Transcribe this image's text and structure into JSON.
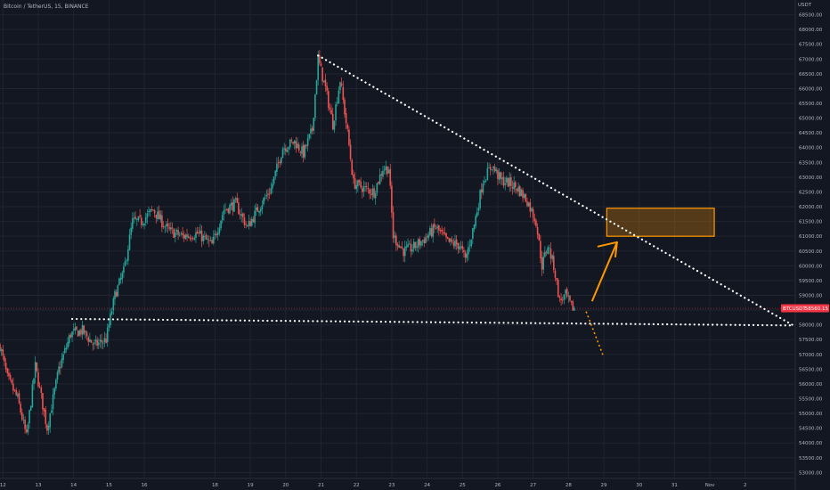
{
  "chart_data": {
    "type": "candlestick",
    "title": "Bitcoin / TetherUS, 15, BINANCE",
    "unit": "USDT",
    "y_range": [
      52800,
      69000
    ],
    "y_ticks": [
      53000,
      53500,
      54000,
      54500,
      55000,
      55500,
      56000,
      56500,
      57000,
      57500,
      58000,
      58500,
      59000,
      59500,
      60000,
      60500,
      61000,
      61500,
      62000,
      62500,
      63000,
      63500,
      64000,
      64500,
      65000,
      65500,
      66000,
      66500,
      67000,
      67500,
      68000,
      68500
    ],
    "y_tick_labels": [
      "53000.00",
      "53500.00",
      "54000.00",
      "54500.00",
      "55000.00",
      "55500.00",
      "56000.00",
      "56500.00",
      "57000.00",
      "57500.00",
      "58000.00",
      "58500.00",
      "59000.00",
      "59500.00",
      "60000.00",
      "60500.00",
      "61000.00",
      "61500.00",
      "62000.00",
      "62500.00",
      "63000.00",
      "63500.00",
      "64000.00",
      "64500.00",
      "65000.00",
      "65500.00",
      "66000.00",
      "66500.00",
      "67000.00",
      "67500.00",
      "68000.00",
      "68500.00"
    ],
    "x_range": [
      "2021-10-11 22:00",
      "2021-11-03 10:00"
    ],
    "x_ticks": [
      "2021-10-12",
      "2021-10-13",
      "2021-10-14",
      "2021-10-15",
      "2021-10-16",
      "2021-10-18",
      "2021-10-19",
      "2021-10-20",
      "2021-10-21",
      "2021-10-22",
      "2021-10-23",
      "2021-10-24",
      "2021-10-25",
      "2021-10-26",
      "2021-10-27",
      "2021-10-28",
      "2021-10-29",
      "2021-10-30",
      "2021-10-31",
      "2021-11-01",
      "2021-11-02"
    ],
    "x_tick_labels": [
      "12",
      "13",
      "14",
      "15",
      "16",
      "18",
      "19",
      "20",
      "21",
      "22",
      "23",
      "24",
      "25",
      "26",
      "27",
      "28",
      "29",
      "30",
      "31",
      "Nov",
      "2"
    ],
    "price_path": [
      [
        "2021-10-11 22:00",
        57300
      ],
      [
        "2021-10-12 03:00",
        56200
      ],
      [
        "2021-10-12 10:00",
        55500
      ],
      [
        "2021-10-12 16:00",
        54200
      ],
      [
        "2021-10-12 22:00",
        56600
      ],
      [
        "2021-10-13 06:00",
        54500
      ],
      [
        "2021-10-13 14:00",
        56500
      ],
      [
        "2021-10-13 22:00",
        57700
      ],
      [
        "2021-10-14 06:00",
        57800
      ],
      [
        "2021-10-14 14:00",
        57300
      ],
      [
        "2021-10-14 22:00",
        57500
      ],
      [
        "2021-10-15 04:00",
        59000
      ],
      [
        "2021-10-15 10:00",
        59800
      ],
      [
        "2021-10-15 16:00",
        61500
      ],
      [
        "2021-10-15 22:00",
        61500
      ],
      [
        "2021-10-16 06:00",
        61900
      ],
      [
        "2021-10-16 16:00",
        61200
      ],
      [
        "2021-10-17 02:00",
        61000
      ],
      [
        "2021-10-17 12:00",
        61100
      ],
      [
        "2021-10-17 22:00",
        60700
      ],
      [
        "2021-10-18 06:00",
        61900
      ],
      [
        "2021-10-18 14:00",
        62100
      ],
      [
        "2021-10-18 22:00",
        61300
      ],
      [
        "2021-10-19 06:00",
        62000
      ],
      [
        "2021-10-19 14:00",
        62600
      ],
      [
        "2021-10-19 22:00",
        64000
      ],
      [
        "2021-10-20 06:00",
        64200
      ],
      [
        "2021-10-20 12:00",
        63800
      ],
      [
        "2021-10-20 18:00",
        64600
      ],
      [
        "2021-10-20 22:00",
        67000
      ],
      [
        "2021-10-21 03:00",
        66000
      ],
      [
        "2021-10-21 08:00",
        64800
      ],
      [
        "2021-10-21 13:00",
        66300
      ],
      [
        "2021-10-21 18:00",
        64500
      ],
      [
        "2021-10-21 22:00",
        62800
      ],
      [
        "2021-10-22 06:00",
        62600
      ],
      [
        "2021-10-22 12:00",
        62500
      ],
      [
        "2021-10-22 18:00",
        63300
      ],
      [
        "2021-10-22 22:00",
        63300
      ],
      [
        "2021-10-23 01:00",
        61000
      ],
      [
        "2021-10-23 08:00",
        60500
      ],
      [
        "2021-10-23 14:00",
        60600
      ],
      [
        "2021-10-23 22:00",
        60900
      ],
      [
        "2021-10-24 06:00",
        61300
      ],
      [
        "2021-10-24 14:00",
        60800
      ],
      [
        "2021-10-24 22:00",
        60700
      ],
      [
        "2021-10-25 02:00",
        60200
      ],
      [
        "2021-10-25 08:00",
        61400
      ],
      [
        "2021-10-25 14:00",
        62900
      ],
      [
        "2021-10-25 20:00",
        63400
      ],
      [
        "2021-10-26 02:00",
        62900
      ],
      [
        "2021-10-26 08:00",
        62800
      ],
      [
        "2021-10-26 14:00",
        62600
      ],
      [
        "2021-10-26 20:00",
        62200
      ],
      [
        "2021-10-27 02:00",
        61500
      ],
      [
        "2021-10-27 06:00",
        60000
      ],
      [
        "2021-10-27 10:00",
        60700
      ],
      [
        "2021-10-27 14:00",
        60000
      ],
      [
        "2021-10-27 18:00",
        58800
      ],
      [
        "2021-10-27 22:00",
        59000
      ],
      [
        "2021-10-28 02:00",
        58600
      ],
      [
        "2021-10-28 04:00",
        58560
      ]
    ],
    "current_price": {
      "symbol": "BTCUSDT",
      "value": 58560.15,
      "label": "58560.15",
      "time": "2021-10-28 04:00"
    },
    "support_line": [
      [
        "2021-10-13 23:00",
        58200
      ],
      [
        "2021-11-03 08:00",
        57980
      ]
    ],
    "resistance_line": [
      [
        "2021-10-20 22:00",
        67120
      ],
      [
        "2021-11-03 08:00",
        58000
      ]
    ],
    "target_zone": {
      "x": [
        "2021-10-29 02:00",
        "2021-11-01 03:00"
      ],
      "y": [
        61000,
        61950
      ]
    },
    "arrow_up": [
      [
        "2021-10-28 16:00",
        58800
      ],
      [
        "2021-10-29 09:00",
        60800
      ]
    ],
    "arrow_down": [
      [
        "2021-10-28 12:00",
        58450
      ],
      [
        "2021-10-29 00:00",
        56900
      ]
    ],
    "colors": {
      "background": "#131722",
      "grid": "#1f2430",
      "up": "#26a69a",
      "down": "#ef5350",
      "trendline": "#ffffff",
      "zone": "#ff9800",
      "price_label": "#f23645"
    }
  }
}
